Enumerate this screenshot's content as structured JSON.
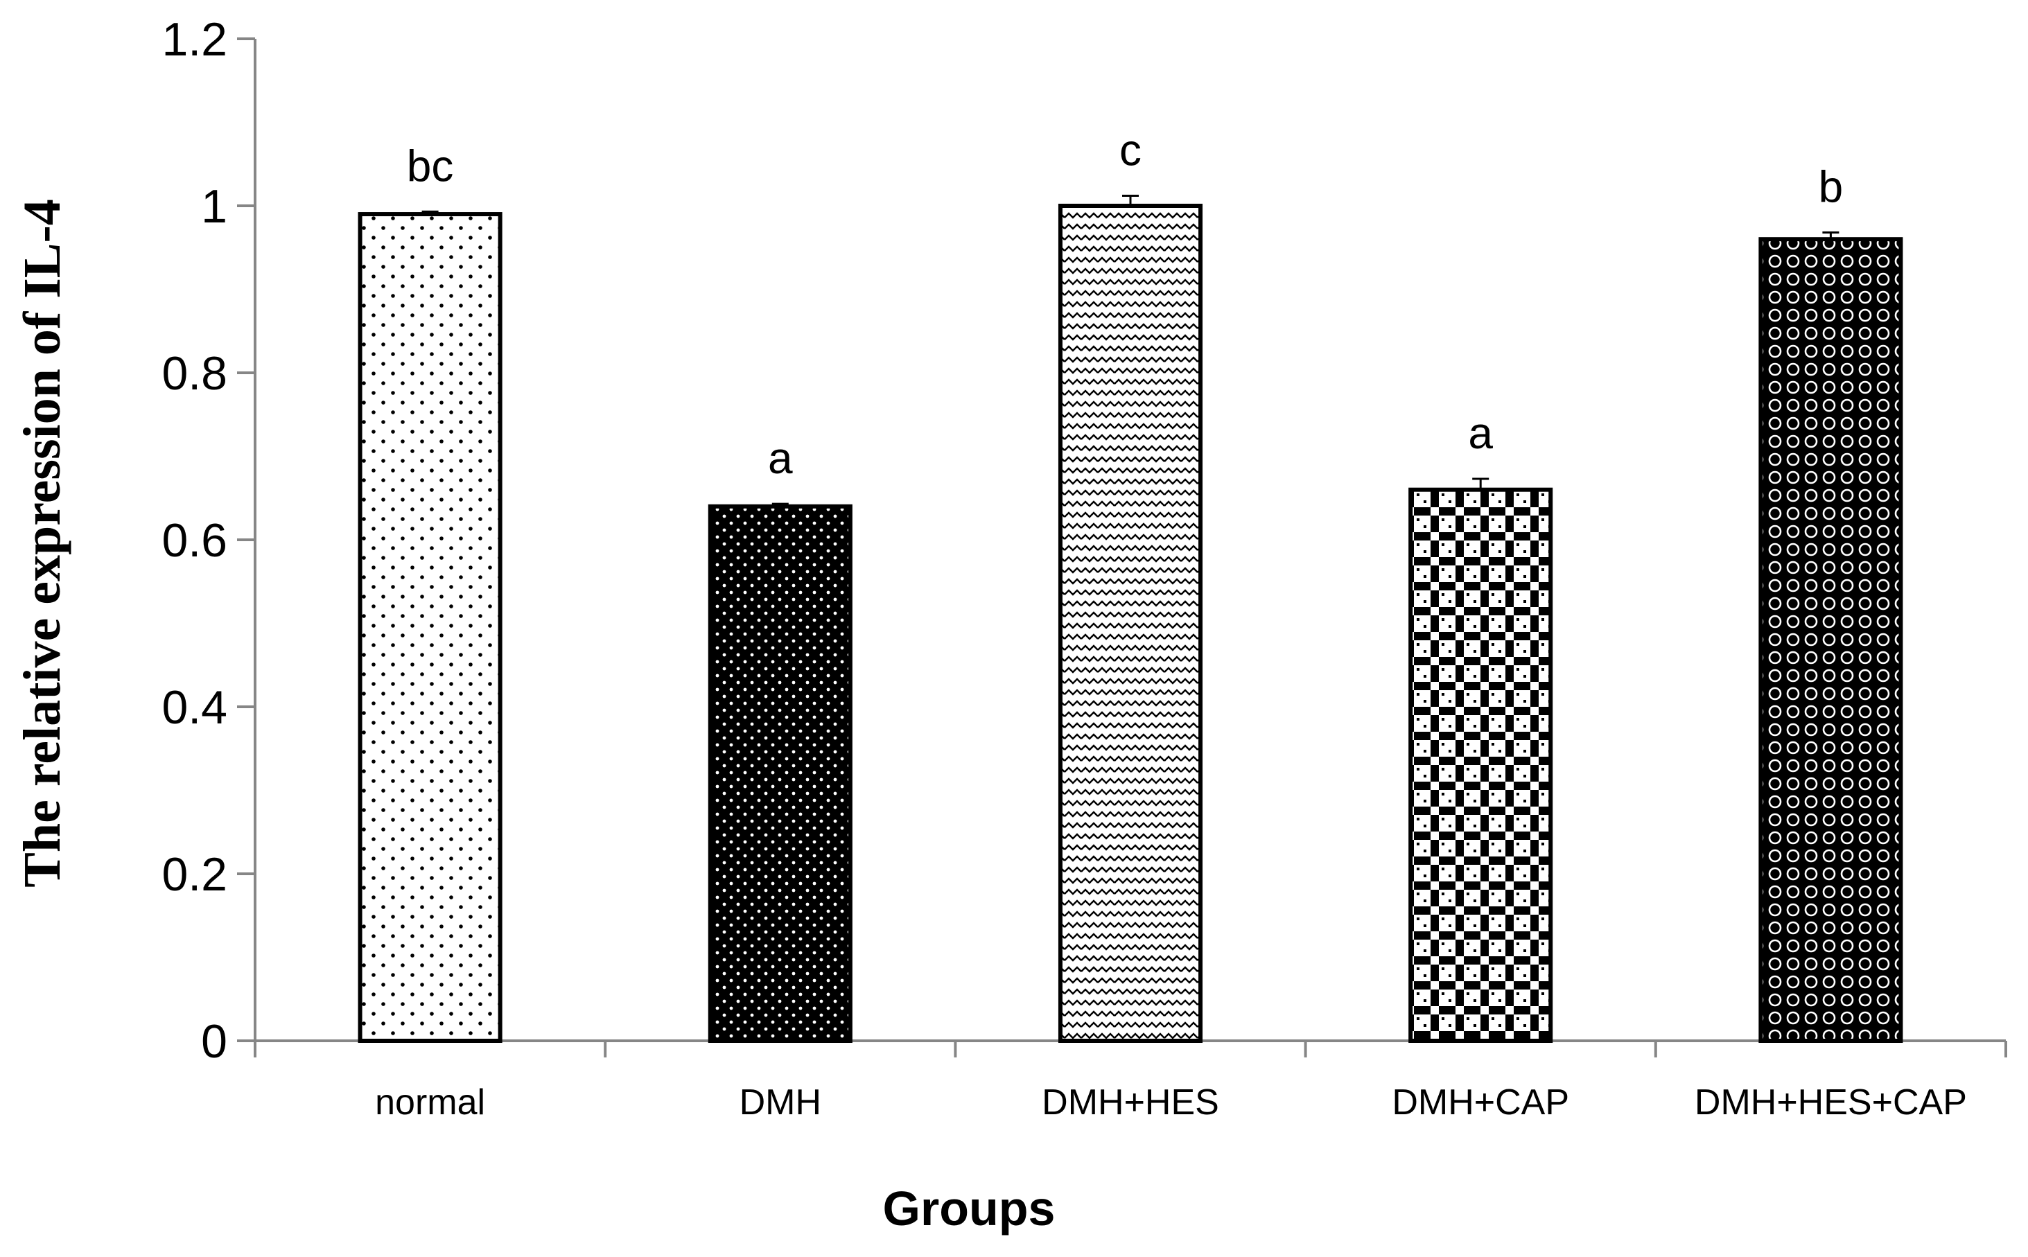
{
  "chart_data": {
    "type": "bar",
    "title": "",
    "xlabel": "Groups",
    "ylabel": "The relative expression of IL-4",
    "categories": [
      "normal",
      "DMH",
      "DMH+HES",
      "DMH+CAP",
      "DMH+HES+CAP"
    ],
    "values": [
      0.99,
      0.64,
      1.0,
      0.66,
      0.96
    ],
    "error": [
      0.003,
      0.003,
      0.012,
      0.013,
      0.008
    ],
    "annotations": [
      "bc",
      "a",
      "c",
      "a",
      "b"
    ],
    "yticks": [
      "0",
      "0.2",
      "0.4",
      "0.6",
      "0.8",
      "1",
      "1.2"
    ],
    "ylim": [
      0,
      1.2
    ],
    "grid": false,
    "legend": "none"
  },
  "colors": {
    "axis": "#868686",
    "bar_outline": "#000000",
    "background": "#ffffff"
  }
}
